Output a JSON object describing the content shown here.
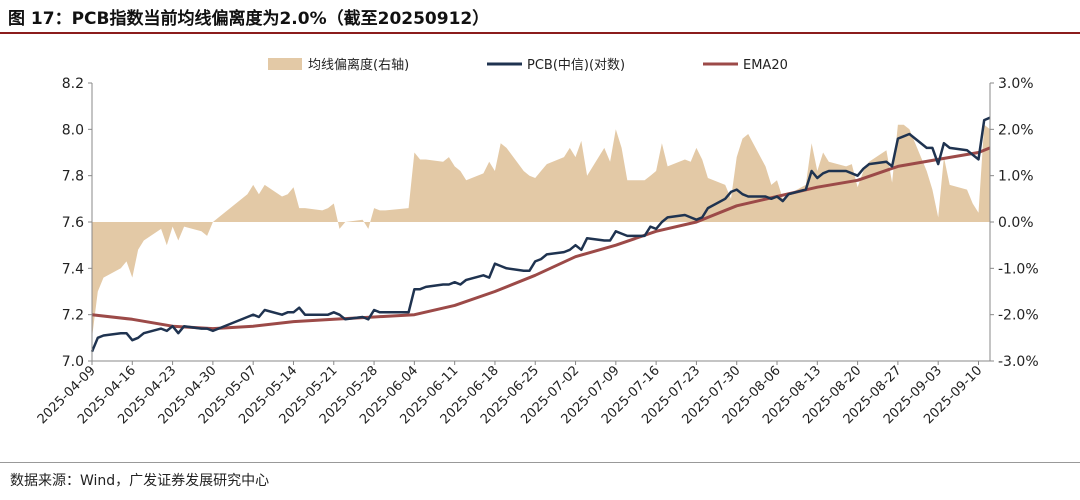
{
  "title": "图 17：PCB指数当前均线偏离度为2.0%（截至20250912）",
  "source": "数据来源：Wind，广发证券发展研究中心",
  "colors": {
    "pcb": "#1f3350",
    "ema": "#9c4a48",
    "dev": "#e3c9a6",
    "title_rule": "#8b1c1c"
  },
  "chart_data": {
    "type": "line",
    "title": "PCB指数当前均线偏离度为2.0%（截至20250912）",
    "legend_position": "top",
    "x_tick_labels": [
      "2025-04-09",
      "2025-04-16",
      "2025-04-23",
      "2025-04-30",
      "2025-05-07",
      "2025-05-14",
      "2025-05-21",
      "2025-05-28",
      "2025-06-04",
      "2025-06-11",
      "2025-06-18",
      "2025-06-25",
      "2025-07-02",
      "2025-07-09",
      "2025-07-16",
      "2025-07-23",
      "2025-07-30",
      "2025-08-06",
      "2025-08-13",
      "2025-08-20",
      "2025-08-27",
      "2025-09-03",
      "2025-09-10"
    ],
    "y_left": {
      "min": 7.0,
      "max": 8.2,
      "step": 0.2,
      "ticks": [
        "7.0",
        "7.2",
        "7.4",
        "7.6",
        "7.8",
        "8.0",
        "8.2"
      ]
    },
    "y_right": {
      "min": -3.0,
      "max": 3.0,
      "step": 1.0,
      "unit": "%",
      "ticks": [
        "-3.0%",
        "-2.0%",
        "-1.0%",
        "0.0%",
        "1.0%",
        "2.0%",
        "3.0%"
      ]
    },
    "series": [
      {
        "name": "均线偏离度(右轴)",
        "kind": "area",
        "axis": "right",
        "points": [
          [
            "2025-04-09",
            -2.5
          ],
          [
            "2025-04-10",
            -1.5
          ],
          [
            "2025-04-11",
            -1.2
          ],
          [
            "2025-04-14",
            -1.0
          ],
          [
            "2025-04-15",
            -0.85
          ],
          [
            "2025-04-16",
            -1.2
          ],
          [
            "2025-04-17",
            -0.6
          ],
          [
            "2025-04-18",
            -0.4
          ],
          [
            "2025-04-21",
            -0.15
          ],
          [
            "2025-04-22",
            -0.5
          ],
          [
            "2025-04-23",
            -0.1
          ],
          [
            "2025-04-24",
            -0.4
          ],
          [
            "2025-04-25",
            -0.1
          ],
          [
            "2025-04-28",
            -0.2
          ],
          [
            "2025-04-29",
            -0.3
          ],
          [
            "2025-04-30",
            0.0
          ],
          [
            "2025-05-06",
            0.6
          ],
          [
            "2025-05-07",
            0.8
          ],
          [
            "2025-05-08",
            0.6
          ],
          [
            "2025-05-09",
            0.8
          ],
          [
            "2025-05-12",
            0.55
          ],
          [
            "2025-05-13",
            0.6
          ],
          [
            "2025-05-14",
            0.75
          ],
          [
            "2025-05-15",
            0.3
          ],
          [
            "2025-05-16",
            0.3
          ],
          [
            "2025-05-19",
            0.25
          ],
          [
            "2025-05-20",
            0.3
          ],
          [
            "2025-05-21",
            0.4
          ],
          [
            "2025-05-22",
            -0.15
          ],
          [
            "2025-05-23",
            0.0
          ],
          [
            "2025-05-26",
            0.05
          ],
          [
            "2025-05-27",
            -0.15
          ],
          [
            "2025-05-28",
            0.3
          ],
          [
            "2025-05-29",
            0.25
          ],
          [
            "2025-05-30",
            0.25
          ],
          [
            "2025-06-03",
            0.3
          ],
          [
            "2025-06-04",
            1.5
          ],
          [
            "2025-06-05",
            1.35
          ],
          [
            "2025-06-06",
            1.35
          ],
          [
            "2025-06-09",
            1.3
          ],
          [
            "2025-06-10",
            1.4
          ],
          [
            "2025-06-11",
            1.2
          ],
          [
            "2025-06-12",
            1.1
          ],
          [
            "2025-06-13",
            0.9
          ],
          [
            "2025-06-16",
            1.05
          ],
          [
            "2025-06-17",
            1.3
          ],
          [
            "2025-06-18",
            1.1
          ],
          [
            "2025-06-19",
            1.7
          ],
          [
            "2025-06-20",
            1.6
          ],
          [
            "2025-06-23",
            1.1
          ],
          [
            "2025-06-24",
            1.0
          ],
          [
            "2025-06-25",
            0.95
          ],
          [
            "2025-06-26",
            1.1
          ],
          [
            "2025-06-27",
            1.25
          ],
          [
            "2025-06-30",
            1.4
          ],
          [
            "2025-07-01",
            1.6
          ],
          [
            "2025-07-02",
            1.4
          ],
          [
            "2025-07-03",
            1.75
          ],
          [
            "2025-07-04",
            1.0
          ],
          [
            "2025-07-07",
            1.6
          ],
          [
            "2025-07-08",
            1.3
          ],
          [
            "2025-07-09",
            2.0
          ],
          [
            "2025-07-10",
            1.6
          ],
          [
            "2025-07-11",
            0.9
          ],
          [
            "2025-07-14",
            0.9
          ],
          [
            "2025-07-15",
            1.0
          ],
          [
            "2025-07-16",
            1.1
          ],
          [
            "2025-07-17",
            1.7
          ],
          [
            "2025-07-18",
            1.2
          ],
          [
            "2025-07-21",
            1.35
          ],
          [
            "2025-07-22",
            1.3
          ],
          [
            "2025-07-23",
            1.6
          ],
          [
            "2025-07-24",
            1.35
          ],
          [
            "2025-07-25",
            0.95
          ],
          [
            "2025-07-28",
            0.8
          ],
          [
            "2025-07-29",
            0.5
          ],
          [
            "2025-07-30",
            1.4
          ],
          [
            "2025-07-31",
            1.8
          ],
          [
            "2025-08-01",
            1.9
          ],
          [
            "2025-08-04",
            1.2
          ],
          [
            "2025-08-05",
            0.8
          ],
          [
            "2025-08-06",
            0.9
          ],
          [
            "2025-08-07",
            0.5
          ],
          [
            "2025-08-08",
            0.6
          ],
          [
            "2025-08-11",
            0.8
          ],
          [
            "2025-08-12",
            1.7
          ],
          [
            "2025-08-13",
            1.1
          ],
          [
            "2025-08-14",
            1.5
          ],
          [
            "2025-08-15",
            1.3
          ],
          [
            "2025-08-18",
            1.2
          ],
          [
            "2025-08-19",
            1.25
          ],
          [
            "2025-08-20",
            0.75
          ],
          [
            "2025-08-21",
            1.1
          ],
          [
            "2025-08-22",
            1.3
          ],
          [
            "2025-08-25",
            1.55
          ],
          [
            "2025-08-26",
            0.85
          ],
          [
            "2025-08-27",
            2.1
          ],
          [
            "2025-08-28",
            2.1
          ],
          [
            "2025-08-29",
            2.0
          ],
          [
            "2025-09-01",
            1.1
          ],
          [
            "2025-09-02",
            0.7
          ],
          [
            "2025-09-03",
            0.1
          ],
          [
            "2025-09-04",
            1.4
          ],
          [
            "2025-09-05",
            0.8
          ],
          [
            "2025-09-08",
            0.7
          ],
          [
            "2025-09-09",
            0.4
          ],
          [
            "2025-09-10",
            0.2
          ],
          [
            "2025-09-11",
            2.1
          ],
          [
            "2025-09-12",
            2.0
          ]
        ]
      },
      {
        "name": "PCB(中信)(对数)",
        "kind": "line",
        "axis": "left",
        "points": [
          [
            "2025-04-09",
            7.04
          ],
          [
            "2025-04-10",
            7.1
          ],
          [
            "2025-04-11",
            7.11
          ],
          [
            "2025-04-14",
            7.12
          ],
          [
            "2025-04-15",
            7.12
          ],
          [
            "2025-04-16",
            7.09
          ],
          [
            "2025-04-17",
            7.1
          ],
          [
            "2025-04-18",
            7.12
          ],
          [
            "2025-04-21",
            7.14
          ],
          [
            "2025-04-22",
            7.13
          ],
          [
            "2025-04-23",
            7.15
          ],
          [
            "2025-04-24",
            7.12
          ],
          [
            "2025-04-25",
            7.15
          ],
          [
            "2025-04-28",
            7.14
          ],
          [
            "2025-04-29",
            7.14
          ],
          [
            "2025-04-30",
            7.13
          ],
          [
            "2025-05-06",
            7.19
          ],
          [
            "2025-05-07",
            7.2
          ],
          [
            "2025-05-08",
            7.19
          ],
          [
            "2025-05-09",
            7.22
          ],
          [
            "2025-05-12",
            7.2
          ],
          [
            "2025-05-13",
            7.21
          ],
          [
            "2025-05-14",
            7.21
          ],
          [
            "2025-05-15",
            7.23
          ],
          [
            "2025-05-16",
            7.2
          ],
          [
            "2025-05-19",
            7.2
          ],
          [
            "2025-05-20",
            7.2
          ],
          [
            "2025-05-21",
            7.21
          ],
          [
            "2025-05-22",
            7.2
          ],
          [
            "2025-05-23",
            7.18
          ],
          [
            "2025-05-26",
            7.19
          ],
          [
            "2025-05-27",
            7.18
          ],
          [
            "2025-05-28",
            7.22
          ],
          [
            "2025-05-29",
            7.21
          ],
          [
            "2025-05-30",
            7.21
          ],
          [
            "2025-06-03",
            7.21
          ],
          [
            "2025-06-04",
            7.31
          ],
          [
            "2025-06-05",
            7.31
          ],
          [
            "2025-06-06",
            7.32
          ],
          [
            "2025-06-09",
            7.33
          ],
          [
            "2025-06-10",
            7.33
          ],
          [
            "2025-06-11",
            7.34
          ],
          [
            "2025-06-12",
            7.33
          ],
          [
            "2025-06-13",
            7.35
          ],
          [
            "2025-06-16",
            7.37
          ],
          [
            "2025-06-17",
            7.36
          ],
          [
            "2025-06-18",
            7.42
          ],
          [
            "2025-06-19",
            7.41
          ],
          [
            "2025-06-20",
            7.4
          ],
          [
            "2025-06-23",
            7.39
          ],
          [
            "2025-06-24",
            7.39
          ],
          [
            "2025-06-25",
            7.43
          ],
          [
            "2025-06-26",
            7.44
          ],
          [
            "2025-06-27",
            7.46
          ],
          [
            "2025-06-30",
            7.47
          ],
          [
            "2025-07-01",
            7.48
          ],
          [
            "2025-07-02",
            7.5
          ],
          [
            "2025-07-03",
            7.48
          ],
          [
            "2025-07-04",
            7.53
          ],
          [
            "2025-07-07",
            7.52
          ],
          [
            "2025-07-08",
            7.52
          ],
          [
            "2025-07-09",
            7.56
          ],
          [
            "2025-07-10",
            7.55
          ],
          [
            "2025-07-11",
            7.54
          ],
          [
            "2025-07-14",
            7.54
          ],
          [
            "2025-07-15",
            7.58
          ],
          [
            "2025-07-16",
            7.57
          ],
          [
            "2025-07-17",
            7.6
          ],
          [
            "2025-07-18",
            7.62
          ],
          [
            "2025-07-21",
            7.63
          ],
          [
            "2025-07-22",
            7.62
          ],
          [
            "2025-07-23",
            7.61
          ],
          [
            "2025-07-24",
            7.62
          ],
          [
            "2025-07-25",
            7.66
          ],
          [
            "2025-07-28",
            7.7
          ],
          [
            "2025-07-29",
            7.73
          ],
          [
            "2025-07-30",
            7.74
          ],
          [
            "2025-07-31",
            7.72
          ],
          [
            "2025-08-01",
            7.71
          ],
          [
            "2025-08-04",
            7.71
          ],
          [
            "2025-08-05",
            7.7
          ],
          [
            "2025-08-06",
            7.71
          ],
          [
            "2025-08-07",
            7.69
          ],
          [
            "2025-08-08",
            7.72
          ],
          [
            "2025-08-11",
            7.74
          ],
          [
            "2025-08-12",
            7.82
          ],
          [
            "2025-08-13",
            7.79
          ],
          [
            "2025-08-14",
            7.81
          ],
          [
            "2025-08-15",
            7.82
          ],
          [
            "2025-08-18",
            7.82
          ],
          [
            "2025-08-19",
            7.81
          ],
          [
            "2025-08-20",
            7.8
          ],
          [
            "2025-08-21",
            7.83
          ],
          [
            "2025-08-22",
            7.85
          ],
          [
            "2025-08-25",
            7.86
          ],
          [
            "2025-08-26",
            7.84
          ],
          [
            "2025-08-27",
            7.96
          ],
          [
            "2025-08-28",
            7.97
          ],
          [
            "2025-08-29",
            7.98
          ],
          [
            "2025-09-01",
            7.92
          ],
          [
            "2025-09-02",
            7.92
          ],
          [
            "2025-09-03",
            7.85
          ],
          [
            "2025-09-04",
            7.94
          ],
          [
            "2025-09-05",
            7.92
          ],
          [
            "2025-09-08",
            7.91
          ],
          [
            "2025-09-09",
            7.89
          ],
          [
            "2025-09-10",
            7.87
          ],
          [
            "2025-09-11",
            8.04
          ],
          [
            "2025-09-12",
            8.05
          ]
        ]
      },
      {
        "name": "EMA20",
        "kind": "line",
        "axis": "left",
        "points": [
          [
            "2025-04-09",
            7.2
          ],
          [
            "2025-04-16",
            7.18
          ],
          [
            "2025-04-23",
            7.15
          ],
          [
            "2025-04-30",
            7.14
          ],
          [
            "2025-05-07",
            7.15
          ],
          [
            "2025-05-14",
            7.17
          ],
          [
            "2025-05-21",
            7.18
          ],
          [
            "2025-05-28",
            7.19
          ],
          [
            "2025-06-04",
            7.2
          ],
          [
            "2025-06-11",
            7.24
          ],
          [
            "2025-06-18",
            7.3
          ],
          [
            "2025-06-25",
            7.37
          ],
          [
            "2025-07-02",
            7.45
          ],
          [
            "2025-07-09",
            7.5
          ],
          [
            "2025-07-16",
            7.56
          ],
          [
            "2025-07-23",
            7.6
          ],
          [
            "2025-07-30",
            7.67
          ],
          [
            "2025-08-06",
            7.71
          ],
          [
            "2025-08-13",
            7.75
          ],
          [
            "2025-08-20",
            7.78
          ],
          [
            "2025-08-27",
            7.84
          ],
          [
            "2025-09-03",
            7.87
          ],
          [
            "2025-09-10",
            7.9
          ],
          [
            "2025-09-12",
            7.92
          ]
        ]
      }
    ]
  }
}
